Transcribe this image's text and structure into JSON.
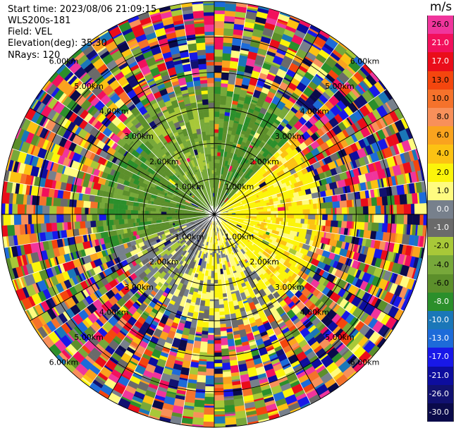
{
  "header": {
    "start_time": "Start time: 2023/08/06 21:09:15",
    "instrument": "WLS200s-181",
    "field": "Field: VEL",
    "elevation": "Elevation(deg): 35.30",
    "nrays": "NRays: 120"
  },
  "colorbar": {
    "unit": "m/s",
    "segments": [
      {
        "label": "26.0",
        "color": "#f0359c"
      },
      {
        "label": "21.0",
        "color": "#f2105c"
      },
      {
        "label": "17.0",
        "color": "#ea0d1a"
      },
      {
        "label": "13.0",
        "color": "#f4460e"
      },
      {
        "label": "10.0",
        "color": "#f5722b"
      },
      {
        "label": "8.0",
        "color": "#f8905a"
      },
      {
        "label": "6.0",
        "color": "#faa31e"
      },
      {
        "label": "4.0",
        "color": "#fcc213"
      },
      {
        "label": "2.0",
        "color": "#fbf40a"
      },
      {
        "label": "1.0",
        "color": "#fffb80"
      },
      {
        "label": "0.0",
        "color": "#77808c"
      },
      {
        "label": "-1.0",
        "color": "#6a6a6a"
      },
      {
        "label": "-2.0",
        "color": "#a8c838"
      },
      {
        "label": "-4.0",
        "color": "#77a83a"
      },
      {
        "label": "-6.0",
        "color": "#5c8f2b"
      },
      {
        "label": "-8.0",
        "color": "#2b8f2b"
      },
      {
        "label": "-10.0",
        "color": "#1a77b8"
      },
      {
        "label": "-13.0",
        "color": "#1d6bd9"
      },
      {
        "label": "-17.0",
        "color": "#1818e8"
      },
      {
        "label": "-21.0",
        "color": "#0d0d9e"
      },
      {
        "label": "-26.0",
        "color": "#111170"
      },
      {
        "label": "-30.0",
        "color": "#0a0a4a"
      }
    ]
  },
  "chart_data": {
    "type": "heatmap",
    "projection": "polar-ppi",
    "field": "VEL",
    "units": "m/s",
    "n_rays": 120,
    "elevation_deg": 35.3,
    "max_range_km": 6.0,
    "range_rings_km": [
      1,
      2,
      3,
      4,
      5,
      6
    ],
    "ring_labels": [
      "1.00km",
      "2.00km",
      "3.00km",
      "4.00km",
      "5.00km",
      "6.00km"
    ],
    "spoke_angles_deg": [
      0,
      30,
      60,
      90,
      120,
      150,
      180,
      210,
      240,
      270,
      300,
      330
    ],
    "sectors": [
      {
        "az_start": 0,
        "az_end": 45,
        "range_max_km": 3.5,
        "velocity": -5.0
      },
      {
        "az_start": 45,
        "az_end": 140,
        "range_max_km": 3.0,
        "velocity": 3.0
      },
      {
        "az_start": 140,
        "az_end": 200,
        "range_max_km": 3.2,
        "velocity": 1.5
      },
      {
        "az_start": 200,
        "az_end": 250,
        "range_max_km": 2.6,
        "velocity": 0.0
      },
      {
        "az_start": 250,
        "az_end": 315,
        "range_max_km": 3.3,
        "velocity": -5.0
      },
      {
        "az_start": 315,
        "az_end": 360,
        "range_max_km": 3.6,
        "velocity": -3.0
      }
    ],
    "noise_beyond_km": 3.5,
    "grid": true
  }
}
